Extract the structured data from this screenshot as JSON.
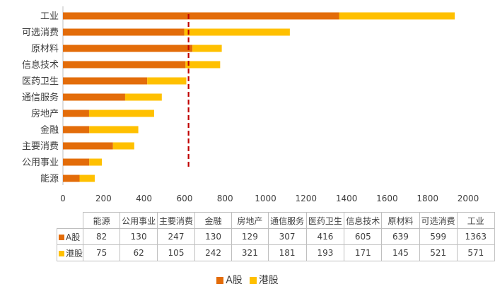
{
  "chart_data": {
    "type": "bar",
    "orientation": "horizontal",
    "stacked": true,
    "categories": [
      "工业",
      "可选消费",
      "原材料",
      "信息技术",
      "医药卫生",
      "通信服务",
      "房地产",
      "金融",
      "主要消费",
      "公用事业",
      "能源"
    ],
    "series": [
      {
        "name": "A股",
        "color": "#E36C09",
        "values": [
          1363,
          599,
          639,
          605,
          416,
          307,
          129,
          130,
          247,
          130,
          82
        ]
      },
      {
        "name": "港股",
        "color": "#FFC000",
        "values": [
          571,
          521,
          145,
          171,
          193,
          181,
          321,
          242,
          105,
          62,
          75
        ]
      }
    ],
    "xlim": [
      0,
      2000
    ],
    "xticks": [
      0,
      200,
      400,
      600,
      800,
      1000,
      1200,
      1400,
      1600,
      1800,
      2000
    ],
    "reference_line": {
      "value": 620,
      "color": "#C00000",
      "style": "dashed"
    },
    "grid": false,
    "legend_position": "bottom",
    "data_table": {
      "columns": [
        "能源",
        "公用事业",
        "主要消费",
        "金融",
        "房地产",
        "通信服务",
        "医药卫生",
        "信息技术",
        "原材料",
        "可选消费",
        "工业"
      ],
      "rows": [
        {
          "name": "A股",
          "values": [
            82,
            130,
            247,
            130,
            129,
            307,
            416,
            605,
            639,
            599,
            1363
          ]
        },
        {
          "name": "港股",
          "values": [
            75,
            62,
            105,
            242,
            321,
            181,
            193,
            171,
            145,
            521,
            571
          ]
        }
      ]
    }
  }
}
